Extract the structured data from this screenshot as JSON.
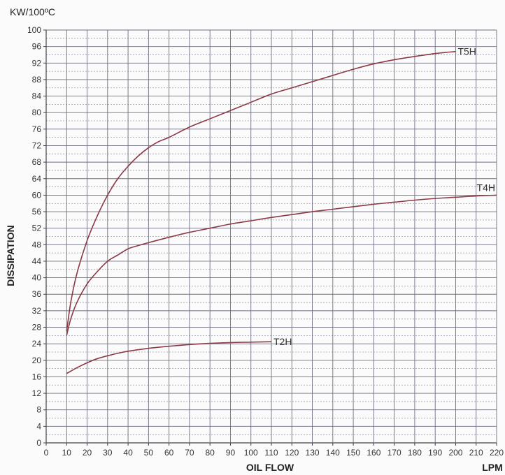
{
  "chart_data": {
    "type": "line",
    "unit_label": "KW/100ºC",
    "xlabel": "OIL FLOW",
    "xunit": "LPM",
    "ylabel": "DISSIPATION",
    "xlim": [
      0,
      220
    ],
    "ylim": [
      0,
      100
    ],
    "x_ticks": [
      0,
      10,
      20,
      30,
      40,
      50,
      60,
      70,
      80,
      90,
      100,
      110,
      120,
      130,
      140,
      150,
      160,
      170,
      180,
      190,
      200,
      210,
      220
    ],
    "y_ticks": [
      0,
      4,
      8,
      12,
      16,
      20,
      24,
      28,
      32,
      36,
      40,
      44,
      48,
      52,
      56,
      60,
      64,
      68,
      72,
      76,
      80,
      84,
      88,
      92,
      96,
      100
    ],
    "grid": true,
    "series": [
      {
        "name": "T5H",
        "color": "#8b3a46",
        "x": [
          10,
          12,
          15,
          20,
          25,
          30,
          35,
          40,
          45,
          50,
          55,
          60,
          70,
          80,
          90,
          100,
          110,
          120,
          130,
          140,
          150,
          160,
          170,
          180,
          190,
          200
        ],
        "y": [
          27,
          34,
          41,
          49,
          55,
          60,
          64,
          67,
          69.5,
          71.5,
          73,
          74,
          76.5,
          78.5,
          80.5,
          82.5,
          84.5,
          86,
          87.5,
          89,
          90.5,
          91.8,
          92.8,
          93.6,
          94.3,
          94.8
        ]
      },
      {
        "name": "T4H",
        "color": "#8b3a46",
        "x": [
          10,
          12,
          15,
          20,
          25,
          30,
          35,
          40,
          45,
          50,
          60,
          70,
          80,
          90,
          100,
          110,
          120,
          130,
          140,
          150,
          160,
          170,
          180,
          190,
          200,
          210,
          220
        ],
        "y": [
          26,
          30,
          34,
          38.5,
          41.5,
          44,
          45.5,
          47,
          47.8,
          48.5,
          49.8,
          51,
          52,
          53,
          53.8,
          54.6,
          55.3,
          56,
          56.6,
          57.2,
          57.8,
          58.3,
          58.8,
          59.2,
          59.5,
          59.8,
          60
        ]
      },
      {
        "name": "T2H",
        "color": "#8b3a46",
        "x": [
          10,
          15,
          20,
          25,
          30,
          35,
          40,
          50,
          60,
          70,
          80,
          90,
          100,
          110
        ],
        "y": [
          16.8,
          18.2,
          19.4,
          20.4,
          21.1,
          21.7,
          22.2,
          22.9,
          23.4,
          23.8,
          24.1,
          24.3,
          24.4,
          24.5
        ]
      }
    ]
  }
}
